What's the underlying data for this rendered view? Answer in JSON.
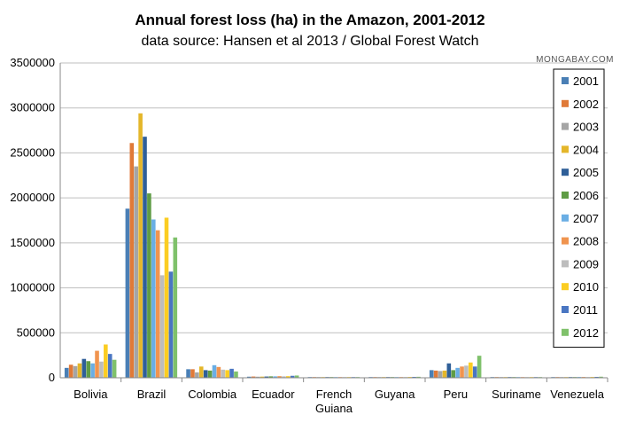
{
  "chart_data": {
    "type": "bar",
    "title": "Annual forest loss (ha) in the Amazon, 2001-2012",
    "subtitle": "data source: Hansen et al 2013 / Global Forest Watch",
    "watermark": "MONGABAY.COM",
    "xlabel": "",
    "ylabel": "",
    "ylim": [
      0,
      3500000
    ],
    "yticks": [
      "0",
      "500000",
      "1000000",
      "1500000",
      "2000000",
      "2500000",
      "3000000",
      "3500000"
    ],
    "grid": true,
    "legend_position": "right",
    "categories": [
      [
        "Bolivia"
      ],
      [
        "Brazil"
      ],
      [
        "Colombia"
      ],
      [
        "Ecuador"
      ],
      [
        "French",
        "Guiana"
      ],
      [
        "Guyana"
      ],
      [
        "Peru"
      ],
      [
        "Suriname"
      ],
      [
        "Venezuela"
      ]
    ],
    "series": [
      {
        "name": "2001",
        "color": "#4a7fb5",
        "values": [
          110000,
          1880000,
          95000,
          12000,
          3000,
          6000,
          85000,
          2000,
          6000
        ]
      },
      {
        "name": "2002",
        "color": "#e07a38",
        "values": [
          145000,
          2610000,
          95000,
          14000,
          3000,
          6000,
          80000,
          2000,
          7000
        ]
      },
      {
        "name": "2003",
        "color": "#a5a5a5",
        "values": [
          130000,
          2350000,
          60000,
          12000,
          3000,
          6000,
          75000,
          2000,
          6000
        ]
      },
      {
        "name": "2004",
        "color": "#e4b62a",
        "values": [
          160000,
          2940000,
          125000,
          13000,
          3000,
          8000,
          80000,
          2000,
          7000
        ]
      },
      {
        "name": "2005",
        "color": "#2f5f98",
        "values": [
          210000,
          2680000,
          85000,
          14000,
          3000,
          7000,
          160000,
          3000,
          8000
        ]
      },
      {
        "name": "2006",
        "color": "#5f9c45",
        "values": [
          185000,
          2050000,
          80000,
          16000,
          3000,
          7000,
          85000,
          3000,
          8000
        ]
      },
      {
        "name": "2007",
        "color": "#6aaee4",
        "values": [
          160000,
          1760000,
          140000,
          16000,
          3000,
          7000,
          110000,
          3000,
          9000
        ]
      },
      {
        "name": "2008",
        "color": "#f0944f",
        "values": [
          300000,
          1640000,
          120000,
          18000,
          3000,
          8000,
          125000,
          3000,
          9000
        ]
      },
      {
        "name": "2009",
        "color": "#bdbdbd",
        "values": [
          180000,
          1140000,
          90000,
          16000,
          3000,
          8000,
          135000,
          3000,
          8000
        ]
      },
      {
        "name": "2010",
        "color": "#fbcd22",
        "values": [
          370000,
          1780000,
          85000,
          18000,
          3000,
          9000,
          170000,
          4000,
          9000
        ]
      },
      {
        "name": "2011",
        "color": "#4a76c2",
        "values": [
          265000,
          1180000,
          100000,
          22000,
          3000,
          10000,
          125000,
          5000,
          10000
        ]
      },
      {
        "name": "2012",
        "color": "#7fc16b",
        "values": [
          200000,
          1560000,
          70000,
          25000,
          3000,
          11000,
          245000,
          7000,
          12000
        ]
      }
    ]
  }
}
